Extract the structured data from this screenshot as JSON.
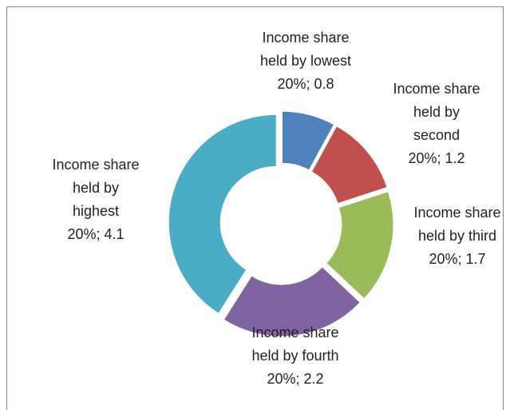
{
  "chart_data": {
    "type": "donut",
    "categories": [
      "Income share held by lowest 20%",
      "Income share held by second 20%",
      "Income share held by third 20%",
      "Income share held by fourth 20%",
      "Income share held by highest 20%"
    ],
    "values": [
      0.8,
      1.2,
      1.7,
      2.2,
      4.1
    ],
    "colors": [
      "#4f81bd",
      "#c0504d",
      "#9bbb59",
      "#8064a2",
      "#4bacc6"
    ],
    "label_separator": "; "
  }
}
